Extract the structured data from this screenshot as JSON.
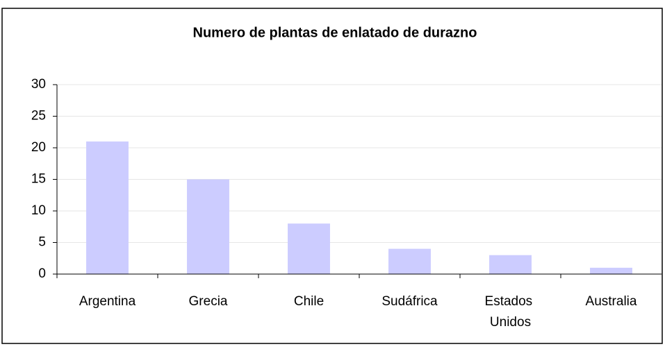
{
  "chart_data": {
    "type": "bar",
    "title": "Numero de plantas de enlatado de durazno",
    "categories": [
      "Argentina",
      "Grecia",
      "Chile",
      "Sudáfrica",
      "Estados Unidos",
      "Australia"
    ],
    "values": [
      21,
      15,
      8,
      4,
      3,
      1
    ],
    "color": "#ccccff",
    "ylim": [
      0,
      30
    ],
    "yticks": [
      0,
      5,
      10,
      15,
      20,
      25,
      30
    ],
    "grid": true
  }
}
